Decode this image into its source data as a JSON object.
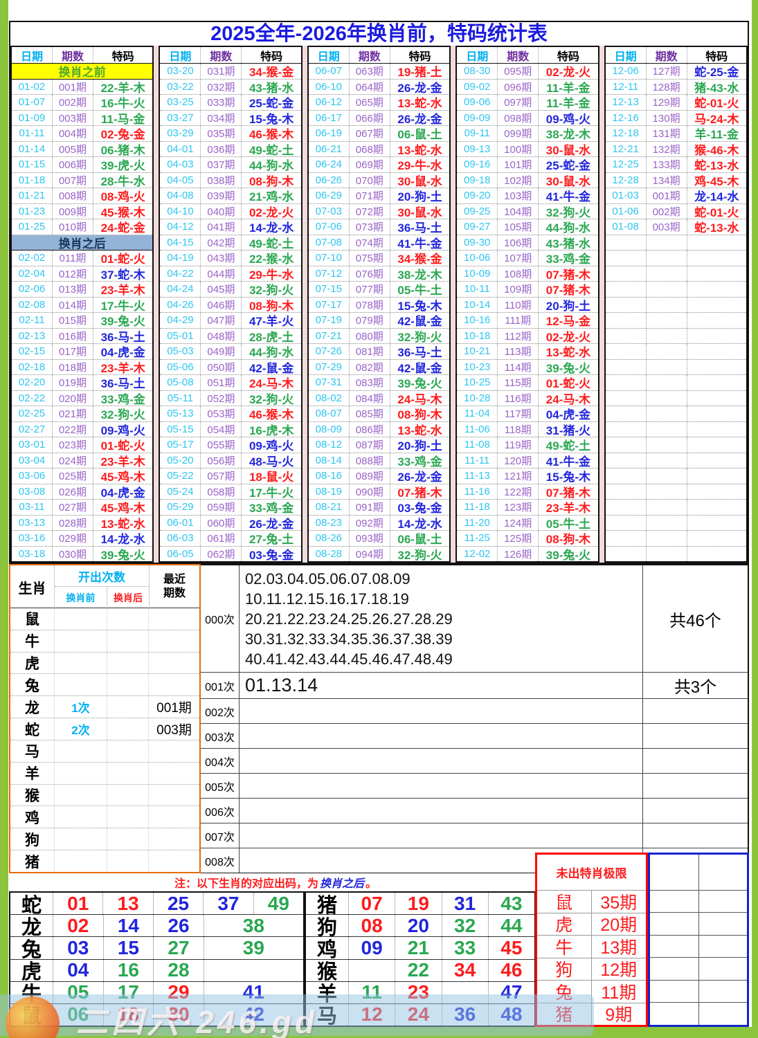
{
  "title": "2025全年-2026年换肖前，特码统计表",
  "headers": {
    "date": "日期",
    "period": "期数",
    "code": "特码"
  },
  "banners": {
    "before": "换肖之前",
    "after": "换肖之后"
  },
  "period_columns": [
    [
      [
        "#banner",
        "before"
      ],
      [
        "01-02",
        "001期",
        "22-羊-木",
        "g"
      ],
      [
        "01-07",
        "002期",
        "16-牛-火",
        "g"
      ],
      [
        "01-09",
        "003期",
        "11-马-金",
        "g"
      ],
      [
        "01-11",
        "004期",
        "02-兔-金",
        "r"
      ],
      [
        "01-14",
        "005期",
        "06-猪-木",
        "g"
      ],
      [
        "01-15",
        "006期",
        "39-虎-火",
        "g"
      ],
      [
        "01-18",
        "007期",
        "28-牛-水",
        "g"
      ],
      [
        "01-21",
        "008期",
        "08-鸡-火",
        "r"
      ],
      [
        "01-23",
        "009期",
        "45-猴-木",
        "r"
      ],
      [
        "01-25",
        "010期",
        "24-蛇-金",
        "r"
      ],
      [
        "#banner",
        "after"
      ],
      [
        "02-02",
        "011期",
        "01-蛇-火",
        "r"
      ],
      [
        "02-04",
        "012期",
        "37-蛇-木",
        "b"
      ],
      [
        "02-06",
        "013期",
        "23-羊-木",
        "r"
      ],
      [
        "02-08",
        "014期",
        "17-牛-火",
        "g"
      ],
      [
        "02-11",
        "015期",
        "39-兔-火",
        "g"
      ],
      [
        "02-13",
        "016期",
        "36-马-土",
        "b"
      ],
      [
        "02-15",
        "017期",
        "04-虎-金",
        "b"
      ],
      [
        "02-18",
        "018期",
        "23-羊-木",
        "r"
      ],
      [
        "02-20",
        "019期",
        "36-马-土",
        "b"
      ],
      [
        "02-22",
        "020期",
        "33-鸡-金",
        "g"
      ],
      [
        "02-25",
        "021期",
        "32-狗-火",
        "g"
      ],
      [
        "02-27",
        "022期",
        "09-鸡-火",
        "b"
      ],
      [
        "03-01",
        "023期",
        "01-蛇-火",
        "r"
      ],
      [
        "03-04",
        "024期",
        "23-羊-木",
        "r"
      ],
      [
        "03-06",
        "025期",
        "45-鸡-木",
        "r"
      ],
      [
        "03-08",
        "026期",
        "04-虎-金",
        "b"
      ],
      [
        "03-11",
        "027期",
        "45-鸡-木",
        "r"
      ],
      [
        "03-13",
        "028期",
        "13-蛇-水",
        "r"
      ],
      [
        "03-16",
        "029期",
        "14-龙-水",
        "b"
      ],
      [
        "03-18",
        "030期",
        "39-兔-火",
        "g"
      ]
    ],
    [
      [
        "03-20",
        "031期",
        "34-猴-金",
        "r"
      ],
      [
        "03-22",
        "032期",
        "43-猪-水",
        "g"
      ],
      [
        "03-25",
        "033期",
        "25-蛇-金",
        "b"
      ],
      [
        "03-27",
        "034期",
        "15-兔-木",
        "b"
      ],
      [
        "03-29",
        "035期",
        "46-猴-木",
        "r"
      ],
      [
        "04-01",
        "036期",
        "49-蛇-土",
        "g"
      ],
      [
        "04-03",
        "037期",
        "44-狗-水",
        "g"
      ],
      [
        "04-05",
        "038期",
        "08-狗-木",
        "r"
      ],
      [
        "04-08",
        "039期",
        "21-鸡-水",
        "g"
      ],
      [
        "04-10",
        "040期",
        "02-龙-火",
        "r"
      ],
      [
        "04-12",
        "041期",
        "14-龙-水",
        "b"
      ],
      [
        "04-15",
        "042期",
        "49-蛇-土",
        "g"
      ],
      [
        "04-19",
        "043期",
        "22-猴-水",
        "g"
      ],
      [
        "04-22",
        "044期",
        "29-牛-水",
        "r"
      ],
      [
        "04-24",
        "045期",
        "32-狗-火",
        "g"
      ],
      [
        "04-26",
        "046期",
        "08-狗-木",
        "r"
      ],
      [
        "04-29",
        "047期",
        "47-羊-火",
        "b"
      ],
      [
        "05-01",
        "048期",
        "28-虎-土",
        "g"
      ],
      [
        "05-03",
        "049期",
        "44-狗-水",
        "g"
      ],
      [
        "05-06",
        "050期",
        "42-鼠-金",
        "b"
      ],
      [
        "05-08",
        "051期",
        "24-马-木",
        "r"
      ],
      [
        "05-11",
        "052期",
        "32-狗-火",
        "g"
      ],
      [
        "05-13",
        "053期",
        "46-猴-木",
        "r"
      ],
      [
        "05-15",
        "054期",
        "16-虎-木",
        "g"
      ],
      [
        "05-17",
        "055期",
        "09-鸡-火",
        "b"
      ],
      [
        "05-20",
        "056期",
        "48-马-火",
        "b"
      ],
      [
        "05-22",
        "057期",
        "18-鼠-火",
        "r"
      ],
      [
        "05-24",
        "058期",
        "17-牛-火",
        "g"
      ],
      [
        "05-29",
        "059期",
        "33-鸡-金",
        "g"
      ],
      [
        "06-01",
        "060期",
        "26-龙-金",
        "b"
      ],
      [
        "06-03",
        "061期",
        "27-兔-土",
        "g"
      ],
      [
        "06-05",
        "062期",
        "03-兔-金",
        "b"
      ]
    ],
    [
      [
        "06-07",
        "063期",
        "19-猪-土",
        "r"
      ],
      [
        "06-10",
        "064期",
        "26-龙-金",
        "b"
      ],
      [
        "06-12",
        "065期",
        "13-蛇-水",
        "r"
      ],
      [
        "06-17",
        "066期",
        "26-龙-金",
        "b"
      ],
      [
        "06-19",
        "067期",
        "06-鼠-土",
        "g"
      ],
      [
        "06-21",
        "068期",
        "13-蛇-水",
        "r"
      ],
      [
        "06-24",
        "069期",
        "29-牛-水",
        "r"
      ],
      [
        "06-26",
        "070期",
        "30-鼠-水",
        "r"
      ],
      [
        "06-29",
        "071期",
        "20-狗-土",
        "b"
      ],
      [
        "07-03",
        "072期",
        "30-鼠-水",
        "r"
      ],
      [
        "07-06",
        "073期",
        "36-马-土",
        "b"
      ],
      [
        "07-08",
        "074期",
        "41-牛-金",
        "b"
      ],
      [
        "07-10",
        "075期",
        "34-猴-金",
        "r"
      ],
      [
        "07-12",
        "076期",
        "38-龙-木",
        "g"
      ],
      [
        "07-15",
        "077期",
        "05-牛-土",
        "g"
      ],
      [
        "07-17",
        "078期",
        "15-兔-木",
        "b"
      ],
      [
        "07-19",
        "079期",
        "42-鼠-金",
        "b"
      ],
      [
        "07-21",
        "080期",
        "32-狗-火",
        "g"
      ],
      [
        "07-26",
        "081期",
        "36-马-土",
        "b"
      ],
      [
        "07-29",
        "082期",
        "42-鼠-金",
        "b"
      ],
      [
        "07-31",
        "083期",
        "39-兔-火",
        "g"
      ],
      [
        "08-02",
        "084期",
        "24-马-木",
        "r"
      ],
      [
        "08-07",
        "085期",
        "08-狗-木",
        "r"
      ],
      [
        "08-09",
        "086期",
        "13-蛇-水",
        "r"
      ],
      [
        "08-12",
        "087期",
        "20-狗-土",
        "b"
      ],
      [
        "08-14",
        "088期",
        "33-鸡-金",
        "g"
      ],
      [
        "08-16",
        "089期",
        "26-龙-金",
        "b"
      ],
      [
        "08-19",
        "090期",
        "07-猪-木",
        "r"
      ],
      [
        "08-21",
        "091期",
        "03-兔-金",
        "b"
      ],
      [
        "08-23",
        "092期",
        "14-龙-水",
        "b"
      ],
      [
        "08-26",
        "093期",
        "06-鼠-土",
        "g"
      ],
      [
        "08-28",
        "094期",
        "32-狗-火",
        "g"
      ]
    ],
    [
      [
        "08-30",
        "095期",
        "02-龙-火",
        "r"
      ],
      [
        "09-02",
        "096期",
        "11-羊-金",
        "g"
      ],
      [
        "09-06",
        "097期",
        "11-羊-金",
        "g"
      ],
      [
        "09-09",
        "098期",
        "09-鸡-火",
        "b"
      ],
      [
        "09-11",
        "099期",
        "38-龙-木",
        "g"
      ],
      [
        "09-13",
        "100期",
        "30-鼠-水",
        "r"
      ],
      [
        "09-16",
        "101期",
        "25-蛇-金",
        "b"
      ],
      [
        "09-18",
        "102期",
        "30-鼠-水",
        "r"
      ],
      [
        "09-20",
        "103期",
        "41-牛-金",
        "b"
      ],
      [
        "09-25",
        "104期",
        "32-狗-火",
        "g"
      ],
      [
        "09-27",
        "105期",
        "44-狗-水",
        "g"
      ],
      [
        "09-30",
        "106期",
        "43-猪-水",
        "g"
      ],
      [
        "10-06",
        "107期",
        "33-鸡-金",
        "g"
      ],
      [
        "10-09",
        "108期",
        "07-猪-木",
        "r"
      ],
      [
        "10-11",
        "109期",
        "07-猪-木",
        "r"
      ],
      [
        "10-14",
        "110期",
        "20-狗-土",
        "b"
      ],
      [
        "10-16",
        "111期",
        "12-马-金",
        "r"
      ],
      [
        "10-18",
        "112期",
        "02-龙-火",
        "r"
      ],
      [
        "10-21",
        "113期",
        "13-蛇-水",
        "r"
      ],
      [
        "10-23",
        "114期",
        "39-兔-火",
        "g"
      ],
      [
        "10-25",
        "115期",
        "01-蛇-火",
        "r"
      ],
      [
        "10-28",
        "116期",
        "24-马-木",
        "r"
      ],
      [
        "11-04",
        "117期",
        "04-虎-金",
        "b"
      ],
      [
        "11-06",
        "118期",
        "31-猪-火",
        "b"
      ],
      [
        "11-08",
        "119期",
        "49-蛇-土",
        "g"
      ],
      [
        "11-11",
        "120期",
        "41-牛-金",
        "b"
      ],
      [
        "11-13",
        "121期",
        "15-兔-木",
        "b"
      ],
      [
        "11-16",
        "122期",
        "07-猪-木",
        "r"
      ],
      [
        "11-18",
        "123期",
        "23-羊-木",
        "r"
      ],
      [
        "11-20",
        "124期",
        "05-牛-土",
        "g"
      ],
      [
        "11-25",
        "125期",
        "08-狗-木",
        "r"
      ],
      [
        "12-02",
        "126期",
        "39-兔-火",
        "g"
      ]
    ],
    [
      [
        "12-06",
        "127期",
        "蛇-25-金",
        "b"
      ],
      [
        "12-11",
        "128期",
        "猪-43-水",
        "g"
      ],
      [
        "12-13",
        "129期",
        "蛇-01-火",
        "r"
      ],
      [
        "12-16",
        "130期",
        "马-24-木",
        "r"
      ],
      [
        "12-18",
        "131期",
        "羊-11-金",
        "g"
      ],
      [
        "12-21",
        "132期",
        "猴-46-木",
        "r"
      ],
      [
        "12-25",
        "133期",
        "蛇-13-水",
        "r"
      ],
      [
        "12-28",
        "134期",
        "鸡-45-木",
        "r"
      ],
      [
        "01-03",
        "001期",
        "龙-14-水",
        "b"
      ],
      [
        "01-06",
        "002期",
        "蛇-01-火",
        "r"
      ],
      [
        "01-08",
        "003期",
        "蛇-13-水",
        "r"
      ]
    ]
  ],
  "stats": {
    "zodiac_header": "生肖",
    "count_header": "开出次数",
    "before_header": "换肖前",
    "after_header": "换肖后",
    "recent_line1": "最近",
    "recent_line2": "期数",
    "rows": [
      {
        "name": "鼠",
        "before": "",
        "after": "",
        "recent": ""
      },
      {
        "name": "牛",
        "before": "",
        "after": "",
        "recent": ""
      },
      {
        "name": "虎",
        "before": "",
        "after": "",
        "recent": ""
      },
      {
        "name": "兔",
        "before": "",
        "after": "",
        "recent": ""
      },
      {
        "name": "龙",
        "before": "1次",
        "after": "",
        "recent": "001期"
      },
      {
        "name": "蛇",
        "before": "2次",
        "after": "",
        "recent": "003期"
      },
      {
        "name": "马",
        "before": "",
        "after": "",
        "recent": ""
      },
      {
        "name": "羊",
        "before": "",
        "after": "",
        "recent": ""
      },
      {
        "name": "猴",
        "before": "",
        "after": "",
        "recent": ""
      },
      {
        "name": "鸡",
        "before": "",
        "after": "",
        "recent": ""
      },
      {
        "name": "狗",
        "before": "",
        "after": "",
        "recent": ""
      },
      {
        "name": "猪",
        "before": "",
        "after": "",
        "recent": ""
      }
    ]
  },
  "counts": [
    {
      "label": "000次",
      "lines": [
        "02.03.04.05.06.07.08.09",
        "10.11.12.15.16.17.18.19",
        "20.21.22.23.24.25.26.27.28.29",
        "30.31.32.33.34.35.36.37.38.39",
        "40.41.42.43.44.45.46.47.48.49"
      ],
      "total": "共46个"
    },
    {
      "label": "001次",
      "lines": [
        "01.13.14"
      ],
      "total": "共3个"
    },
    {
      "label": "002次",
      "lines": [],
      "total": ""
    },
    {
      "label": "003次",
      "lines": [],
      "total": ""
    },
    {
      "label": "004次",
      "lines": [],
      "total": ""
    },
    {
      "label": "005次",
      "lines": [],
      "total": ""
    },
    {
      "label": "006次",
      "lines": [],
      "total": ""
    },
    {
      "label": "007次",
      "lines": [],
      "total": ""
    },
    {
      "label": "008次",
      "lines": [],
      "total": ""
    }
  ],
  "note": {
    "pre": "注：以下生肖的对应出码，为",
    "em": "换肖之后",
    "post": "。"
  },
  "map_left": [
    {
      "name": "蛇",
      "cells": [
        [
          "01",
          "r"
        ],
        [
          "13",
          "r"
        ],
        [
          "25",
          "b"
        ],
        [
          "37",
          "b"
        ],
        [
          "49",
          "g"
        ]
      ]
    },
    {
      "name": "龙",
      "cells": [
        [
          "02",
          "r"
        ],
        [
          "14",
          "b"
        ],
        [
          "26",
          "b"
        ],
        [
          "38",
          "g",
          "span"
        ]
      ]
    },
    {
      "name": "兔",
      "cells": [
        [
          "03",
          "b"
        ],
        [
          "15",
          "b"
        ],
        [
          "27",
          "g"
        ],
        [
          "39",
          "g",
          "span"
        ]
      ]
    },
    {
      "name": "虎",
      "cells": [
        [
          "04",
          "b"
        ],
        [
          "16",
          "g"
        ],
        [
          "28",
          "g"
        ],
        [
          "",
          "n",
          "span"
        ]
      ]
    },
    {
      "name": "牛",
      "cells": [
        [
          "05",
          "g"
        ],
        [
          "17",
          "g"
        ],
        [
          "29",
          "r"
        ],
        [
          "41",
          "b",
          "span"
        ]
      ]
    },
    {
      "name": "鼠",
      "cells": [
        [
          "06",
          "g"
        ],
        [
          "18",
          "r"
        ],
        [
          "30",
          "r"
        ],
        [
          "42",
          "b",
          "span"
        ]
      ]
    }
  ],
  "map_right": [
    {
      "name": "猪",
      "cells": [
        [
          "07",
          "r"
        ],
        [
          "19",
          "r"
        ],
        [
          "31",
          "b"
        ],
        [
          "43",
          "g"
        ]
      ]
    },
    {
      "name": "狗",
      "cells": [
        [
          "08",
          "r"
        ],
        [
          "20",
          "b"
        ],
        [
          "32",
          "g"
        ],
        [
          "44",
          "g"
        ]
      ]
    },
    {
      "name": "鸡",
      "cells": [
        [
          "09",
          "b"
        ],
        [
          "21",
          "g"
        ],
        [
          "33",
          "g"
        ],
        [
          "45",
          "r"
        ]
      ]
    },
    {
      "name": "猴",
      "cells": [
        [
          "",
          "n"
        ],
        [
          "22",
          "g"
        ],
        [
          "34",
          "r"
        ],
        [
          "46",
          "r"
        ]
      ]
    },
    {
      "name": "羊",
      "cells": [
        [
          "11",
          "g"
        ],
        [
          "23",
          "r"
        ],
        [
          "",
          "n"
        ],
        [
          "47",
          "b"
        ]
      ]
    },
    {
      "name": "马",
      "cells": [
        [
          "12",
          "r"
        ],
        [
          "24",
          "r"
        ],
        [
          "36",
          "b"
        ],
        [
          "48",
          "b"
        ]
      ]
    }
  ],
  "limits": {
    "title": "未出特肖极限",
    "rows": [
      [
        "鼠",
        "35期"
      ],
      [
        "虎",
        "20期"
      ],
      [
        "牛",
        "13期"
      ],
      [
        "狗",
        "12期"
      ],
      [
        "兔",
        "11期"
      ],
      [
        "猪",
        "9期"
      ]
    ]
  },
  "watermark": "二四六·246.gd"
}
